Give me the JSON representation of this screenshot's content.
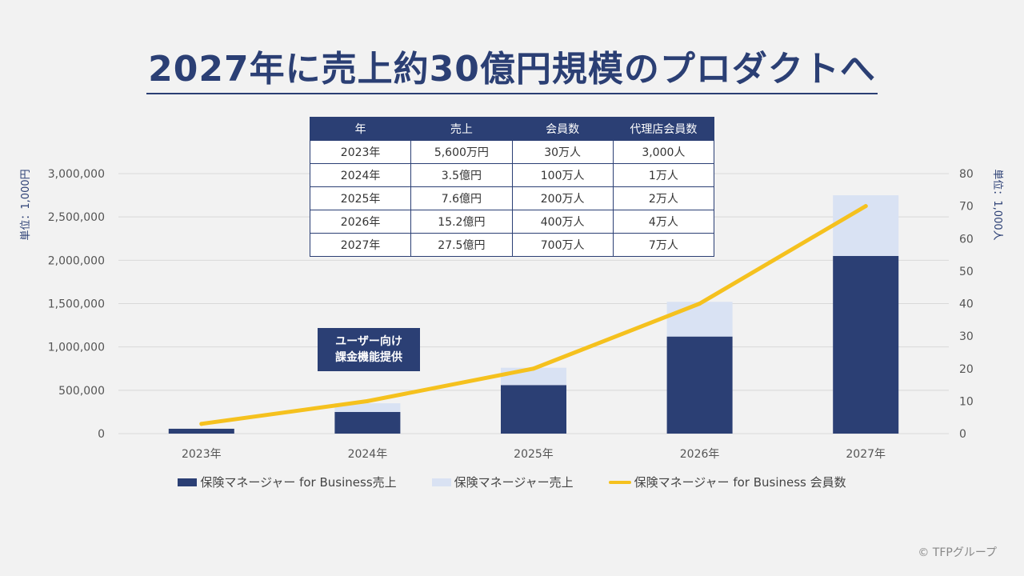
{
  "title": "2027年に売上約30億円規模のプロダクトへ",
  "colors": {
    "dark_bar": "#2b3f74",
    "light_bar": "#d9e2f3",
    "line": "#f5c11e"
  },
  "chart_data": {
    "type": "bar",
    "stacked": true,
    "categories": [
      "2023年",
      "2024年",
      "2025年",
      "2026年",
      "2027年"
    ],
    "series": [
      {
        "name": "保険マネージャー for Business売上",
        "type": "bar",
        "axis": "left",
        "values": [
          56000,
          250000,
          560000,
          1120000,
          2050000
        ]
      },
      {
        "name": "保険マネージャー売上",
        "type": "bar",
        "axis": "left",
        "values": [
          0,
          100000,
          200000,
          400000,
          700000
        ]
      },
      {
        "name": "保険マネージャー for Business 会員数",
        "type": "line",
        "axis": "right",
        "values": [
          3,
          10,
          20,
          40,
          70
        ]
      }
    ],
    "y_left": {
      "label": "単位：1,000円",
      "ylim": [
        0,
        3000000
      ],
      "ticks": [
        0,
        500000,
        1000000,
        1500000,
        2000000,
        2500000,
        3000000
      ],
      "tick_labels": [
        "0",
        "500,000",
        "1,000,000",
        "1,500,000",
        "2,000,000",
        "2,500,000",
        "3,000,000"
      ]
    },
    "y_right": {
      "label": "単位：1,000人",
      "ylim": [
        0,
        80
      ],
      "ticks": [
        0,
        10,
        20,
        30,
        40,
        50,
        60,
        70,
        80
      ],
      "tick_labels": [
        "0",
        "10",
        "20",
        "30",
        "40",
        "50",
        "60",
        "70",
        "80"
      ]
    },
    "grid": true,
    "legend_position": "bottom"
  },
  "table": {
    "headers": [
      "年",
      "売上",
      "会員数",
      "代理店会員数"
    ],
    "rows": [
      [
        "2023年",
        "5,600万円",
        "30万人",
        "3,000人"
      ],
      [
        "2024年",
        "3.5億円",
        "100万人",
        "1万人"
      ],
      [
        "2025年",
        "7.6億円",
        "200万人",
        "2万人"
      ],
      [
        "2026年",
        "15.2億円",
        "400万人",
        "4万人"
      ],
      [
        "2027年",
        "27.5億円",
        "700万人",
        "7万人"
      ]
    ]
  },
  "callout": {
    "line1": "ユーザー向け",
    "line2": "課金機能提供"
  },
  "copyright": "© TFPグループ"
}
